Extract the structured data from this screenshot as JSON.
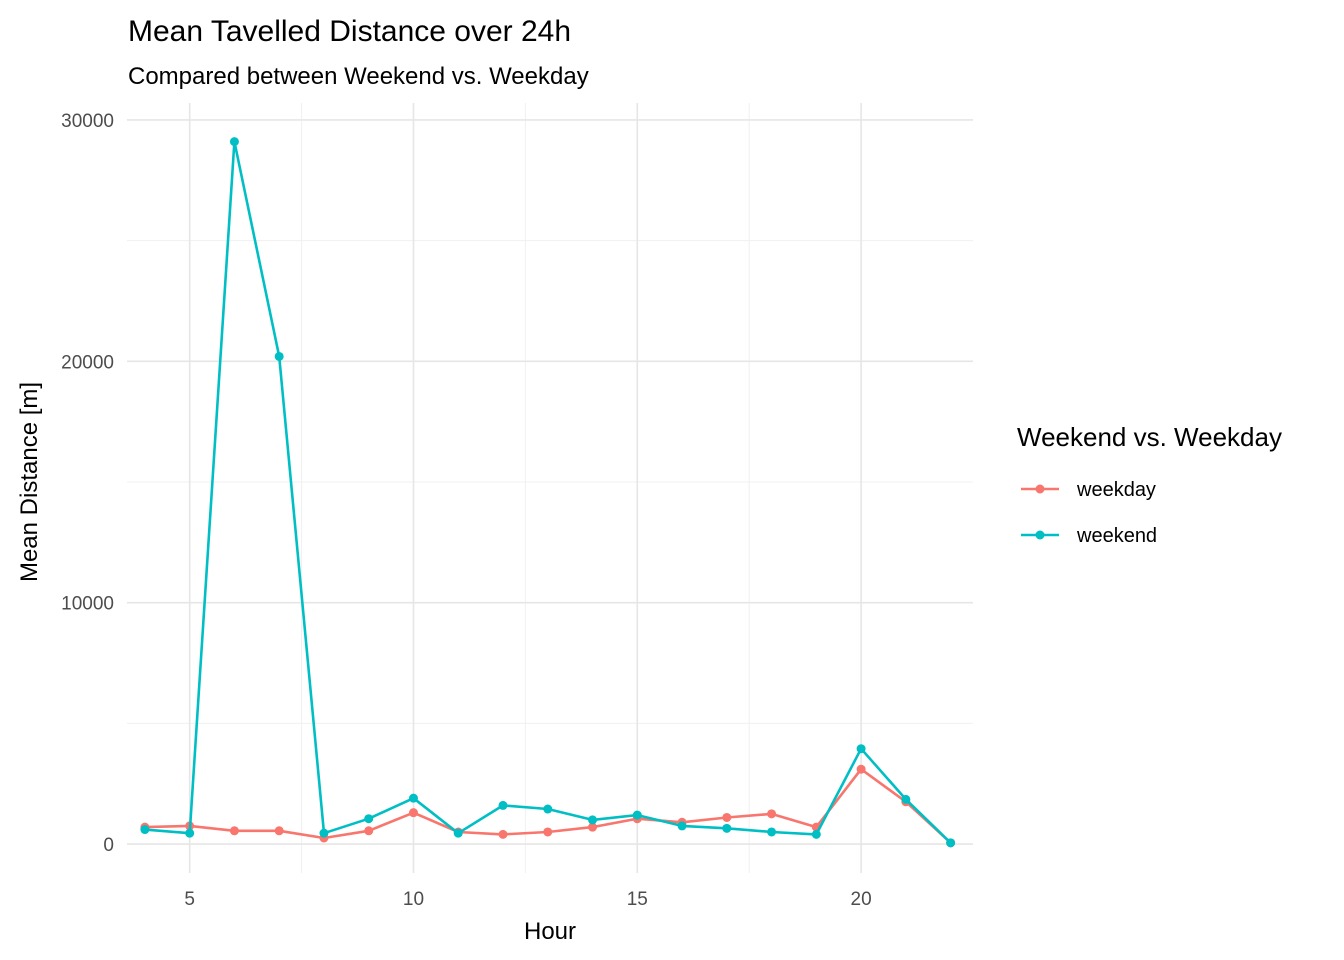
{
  "chart_data": {
    "type": "line",
    "title": "Mean Tavelled Distance over 24h",
    "subtitle": "Compared between Weekend vs. Weekday",
    "xlabel": "Hour",
    "ylabel": "Mean Distance [m]",
    "xlim": [
      3.6,
      22.5
    ],
    "ylim": [
      -1200,
      30700
    ],
    "x_ticks": [
      5,
      10,
      15,
      20
    ],
    "y_ticks": [
      0,
      10000,
      20000,
      30000
    ],
    "grid": true,
    "legend": {
      "title": "Weekend vs. Weekday",
      "position": "right"
    },
    "series": [
      {
        "name": "weekday",
        "color": "#F8766D",
        "x": [
          4,
          5,
          6,
          7,
          8,
          9,
          10,
          11,
          12,
          13,
          14,
          15,
          16,
          17,
          18,
          19,
          20,
          21,
          22
        ],
        "values": [
          700,
          750,
          550,
          550,
          250,
          550,
          1300,
          500,
          400,
          500,
          700,
          1050,
          900,
          1100,
          1250,
          700,
          3100,
          1750,
          50
        ]
      },
      {
        "name": "weekend",
        "color": "#00BFC4",
        "x": [
          4,
          5,
          6,
          7,
          8,
          9,
          10,
          11,
          12,
          13,
          14,
          15,
          16,
          17,
          18,
          19,
          20,
          21,
          22
        ],
        "values": [
          600,
          450,
          29100,
          20200,
          450,
          1050,
          1900,
          450,
          1600,
          1450,
          1000,
          1200,
          750,
          650,
          500,
          400,
          3950,
          1850,
          50
        ]
      }
    ]
  }
}
